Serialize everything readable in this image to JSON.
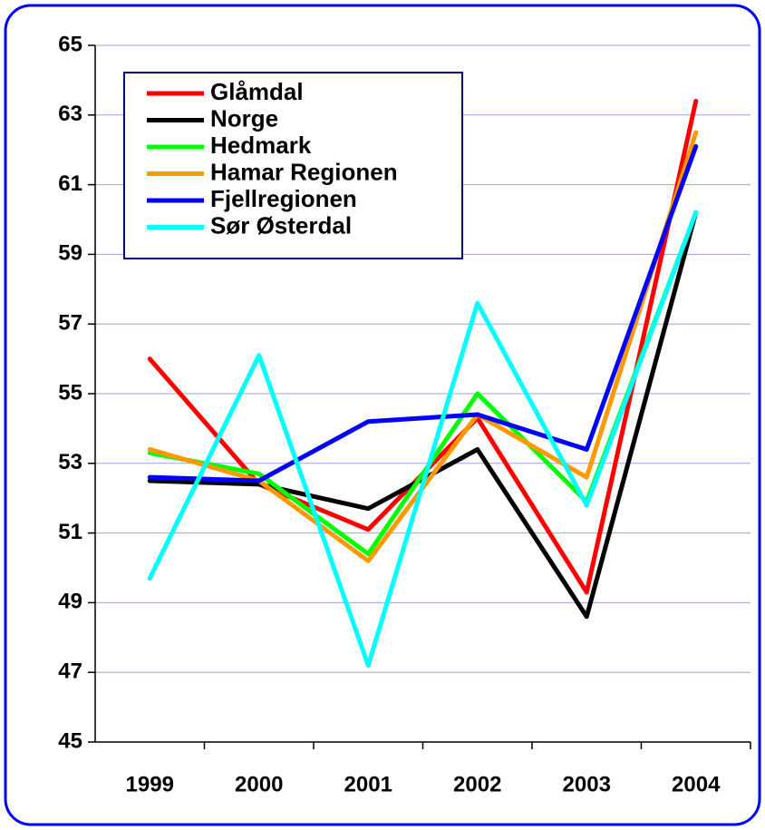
{
  "chart_data": {
    "type": "line",
    "categories": [
      "1999",
      "2000",
      "2001",
      "2002",
      "2003",
      "2004"
    ],
    "series": [
      {
        "name": "Glåmdal",
        "color": "#ff0000",
        "values": [
          56.0,
          52.4,
          51.1,
          54.3,
          49.3,
          63.4
        ]
      },
      {
        "name": "Norge",
        "color": "#000000",
        "values": [
          52.5,
          52.4,
          51.7,
          53.4,
          48.6,
          60.2
        ]
      },
      {
        "name": "Hedmark",
        "color": "#00ff00",
        "values": [
          53.3,
          52.7,
          50.4,
          55.0,
          51.9,
          60.2
        ]
      },
      {
        "name": "Hamar Regionen",
        "color": "#ff9900",
        "values": [
          53.4,
          52.5,
          50.2,
          54.4,
          52.6,
          62.5
        ]
      },
      {
        "name": "Fjellregionen",
        "color": "#0000ff",
        "values": [
          52.6,
          52.5,
          54.2,
          54.4,
          53.4,
          62.1
        ]
      },
      {
        "name": "Sør Østerdal",
        "color": "#00ffff",
        "values": [
          49.7,
          56.1,
          47.2,
          57.6,
          51.8,
          60.2
        ]
      }
    ],
    "ylim": [
      45,
      65
    ],
    "yticks": [
      45,
      47,
      49,
      51,
      53,
      55,
      57,
      59,
      61,
      63,
      65
    ],
    "grid": true,
    "legend": "top-left"
  }
}
